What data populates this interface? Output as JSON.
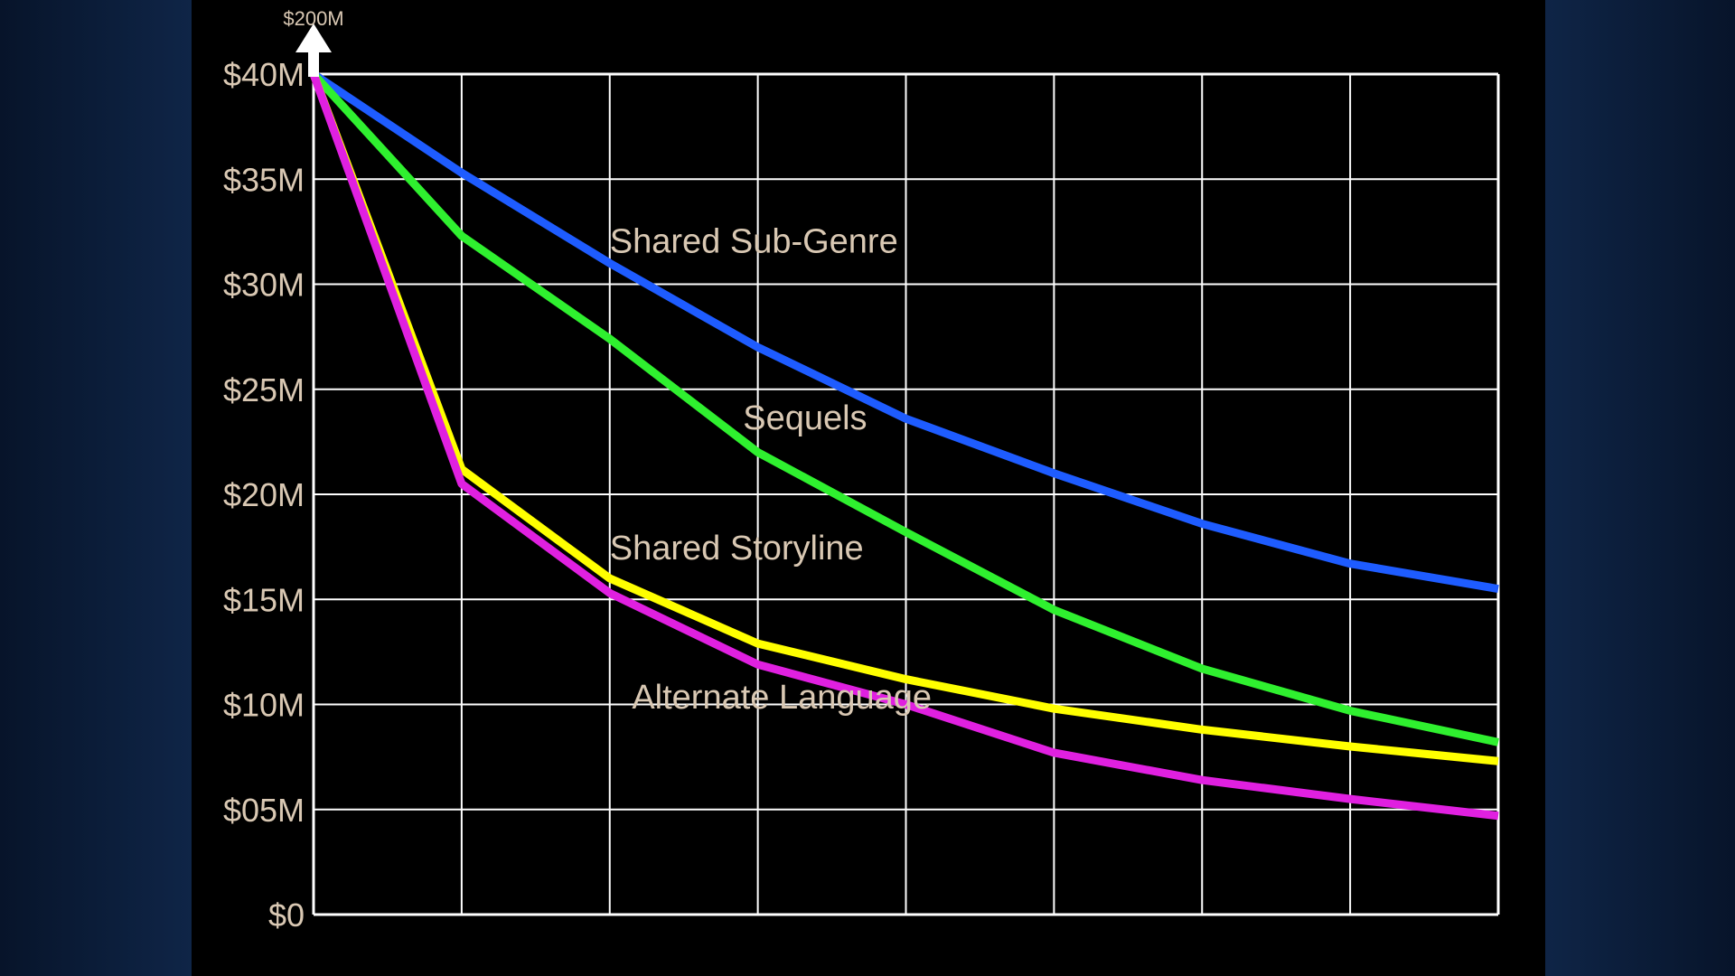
{
  "chart_data": {
    "type": "line",
    "title": "",
    "xlabel": "",
    "ylabel": "",
    "ylim": [
      0,
      40
    ],
    "y_unit": "$M",
    "grid": true,
    "y_tick_values": [
      0,
      5,
      10,
      15,
      20,
      25,
      30,
      35,
      40
    ],
    "y_tick_labels": [
      "$0",
      "$05M",
      "$10M",
      "$15M",
      "$20M",
      "$25M",
      "$30M",
      "$35M",
      "$40M"
    ],
    "top_marker_label": "$200M",
    "x": [
      0,
      1,
      2,
      3,
      4,
      5,
      6,
      7,
      8
    ],
    "series": [
      {
        "name": "Shared Sub-Genre",
        "color": "#1e5cff",
        "values": [
          40,
          35.3,
          31.0,
          27.0,
          23.6,
          21.0,
          18.6,
          16.7,
          15.5
        ]
      },
      {
        "name": "Sequels",
        "color": "#2ff02f",
        "values": [
          40,
          32.3,
          27.4,
          22.0,
          18.2,
          14.5,
          11.7,
          9.7,
          8.2
        ]
      },
      {
        "name": "Shared Storyline",
        "color": "#ffff00",
        "values": [
          40,
          21.2,
          16.0,
          12.9,
          11.2,
          9.8,
          8.8,
          8.0,
          7.3
        ]
      },
      {
        "name": "Alternate Language",
        "color": "#e020e0",
        "values": [
          40,
          20.5,
          15.3,
          11.9,
          10.0,
          7.7,
          6.4,
          5.5,
          4.7
        ]
      }
    ]
  },
  "colors": {
    "background": "#000000",
    "grid": "#ffffff",
    "text": "#d9c8b3",
    "page_edge": "#0b1a33"
  }
}
